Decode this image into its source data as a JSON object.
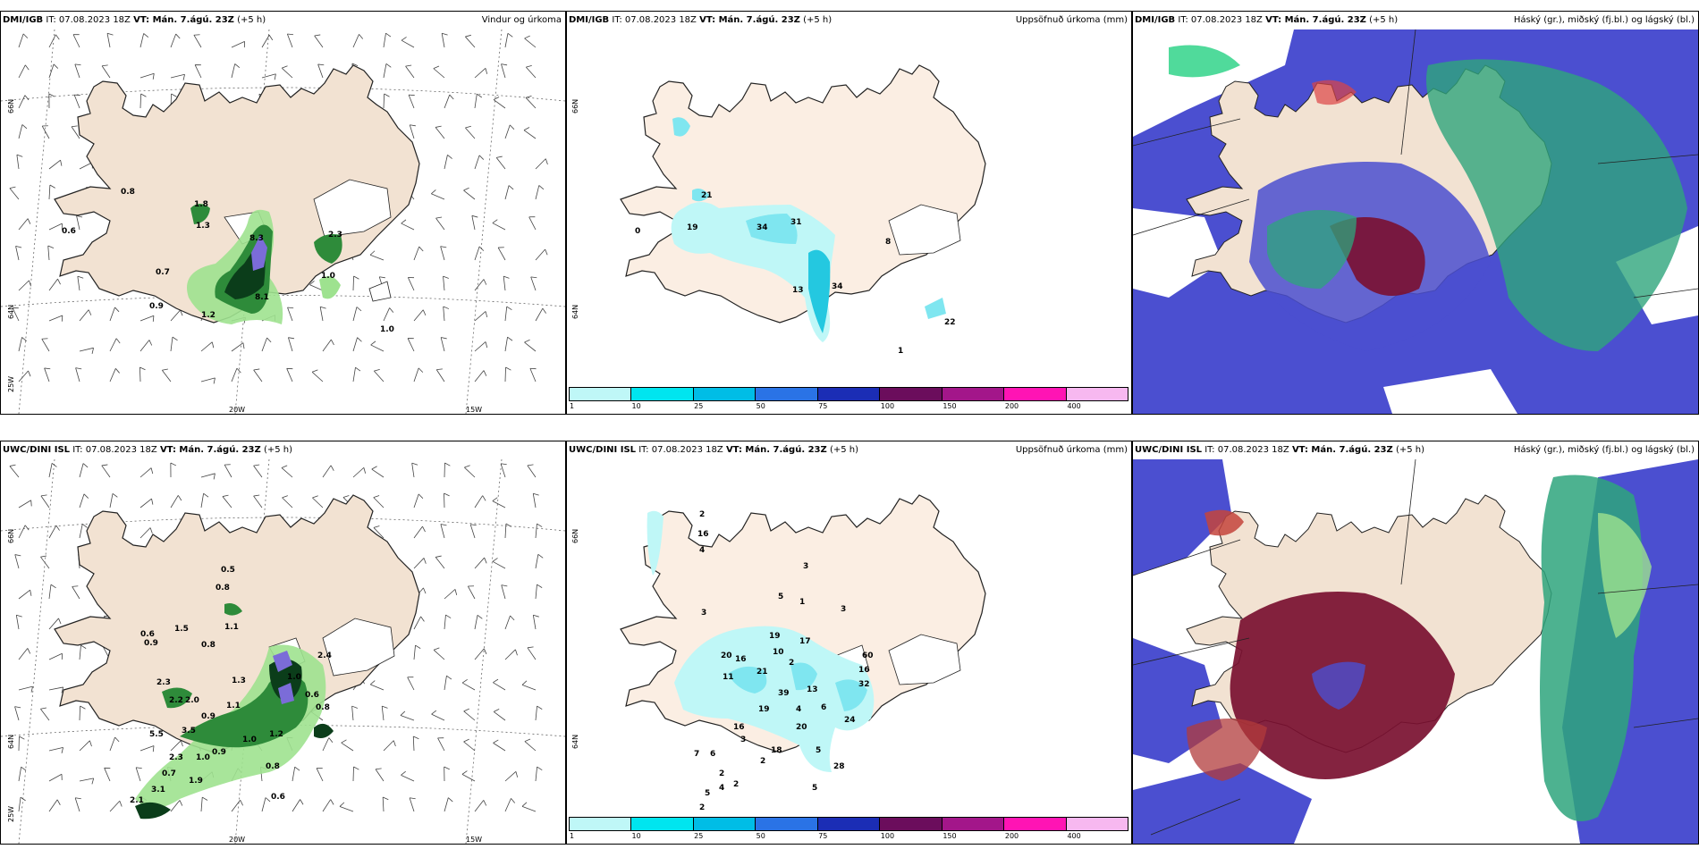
{
  "colors": {
    "land": "#f2e2d2",
    "land_b": "#fbeee3",
    "ice": "#ffffff",
    "green_dark": "#0b3d1a",
    "green": "#2e8b3a",
    "green_light": "#9ee28f",
    "purple": "#7b6cd8",
    "cyan": "#7fe6f0",
    "cyan_dark": "#24c8e0",
    "navy": "#4b4fd0",
    "maroon": "#7a1030",
    "teal": "#2ea57c",
    "seagreen": "#3dd690"
  },
  "top": {
    "wind": {
      "model": "DMI/IGB",
      "it": "IT: 07.08.2023 18Z",
      "vt": "VT: Mán. 7.ágú. 23Z",
      "step": "(+5 h)",
      "title": "Vindur og úrkoma",
      "lat_top": "66N",
      "lat_mid": "64N",
      "lon_left": "25W",
      "lon_mid": "20W",
      "lon_right": "15W",
      "labels": [
        "0.8",
        "0.6",
        "0.7",
        "0.9",
        "1.8",
        "1.3",
        "8.3",
        "8.1",
        "1.2",
        "2.3",
        "1.0",
        "1.0"
      ]
    },
    "precip": {
      "model": "DMI/IGB",
      "it": "IT: 07.08.2023 18Z",
      "vt": "VT: Mán. 7.ágú. 23Z",
      "step": "(+5 h)",
      "title": "Uppsöfnuð úrkoma (mm)",
      "lat_top": "66N",
      "lat_mid": "64N",
      "labels": [
        "21",
        "19",
        "0",
        "34",
        "31",
        "13",
        "34",
        "8",
        "22",
        "1"
      ]
    },
    "cloud": {
      "model": "DMI/IGB",
      "it": "IT: 07.08.2023 18Z",
      "vt": "VT: Mán. 7.ágú. 23Z",
      "step": "(+5 h)",
      "title": "Háský (gr.), miðský (fj.bl.) og lágský (bl.)"
    }
  },
  "bottom": {
    "wind": {
      "model": "UWC/DINI ISL",
      "it": "IT: 07.08.2023 18Z",
      "vt": "VT: Mán. 7.ágú. 23Z",
      "step": "(+5 h)",
      "title": "",
      "lat_top": "66N",
      "lat_mid": "64N",
      "lon_left": "25W",
      "lon_mid": "20W",
      "lon_right": "15W",
      "labels": [
        "0.5",
        "0.8",
        "0.6",
        "0.9",
        "1.5",
        "1.1",
        "0.8",
        "2.4",
        "2.3",
        "1.3",
        "1.0",
        "0.6",
        "2.0",
        "1.1",
        "0.9",
        "2.2",
        "0.8",
        "3.5",
        "5.5",
        "1.2",
        "0.7",
        "3.1",
        "1.9",
        "2.1",
        "0.6",
        "1.0",
        "1.0",
        "2.3",
        "0.9",
        "0.8"
      ]
    },
    "precip": {
      "model": "UWC/DINI ISL",
      "it": "IT: 07.08.2023 18Z",
      "vt": "VT: Mán. 7.ágú. 23Z",
      "step": "(+5 h)",
      "title": "Uppsöfnuð úrkoma (mm)",
      "lat_top": "66N",
      "lat_mid": "64N",
      "labels": [
        "2",
        "16",
        "4",
        "3",
        "5",
        "1",
        "3",
        "3",
        "19",
        "17",
        "20",
        "16",
        "10",
        "2",
        "11",
        "21",
        "39",
        "13",
        "19",
        "16",
        "4",
        "6",
        "20",
        "24",
        "3",
        "18",
        "5",
        "7",
        "6",
        "2",
        "2",
        "4",
        "5",
        "2",
        "28",
        "5",
        "2",
        "32",
        "16",
        "60"
      ]
    },
    "cloud": {
      "model": "UWC/DINI ISL",
      "it": "IT: 07.08.2023 18Z",
      "vt": "VT: Mán. 7.ágú. 23Z",
      "step": "(+5 h)",
      "title": "Háský (gr.), miðský (fj.bl.) og lágský (bl.)"
    }
  },
  "colorbar": {
    "colors": [
      "#bff7f7",
      "#00e5ef",
      "#00bde6",
      "#2a73e6",
      "#1b2db5",
      "#6b0d5c",
      "#a3168a",
      "#ff14b4",
      "#f7b8f0"
    ],
    "labels": [
      "1",
      "10",
      "25",
      "50",
      "75",
      "100",
      "150",
      "200",
      "400"
    ]
  }
}
